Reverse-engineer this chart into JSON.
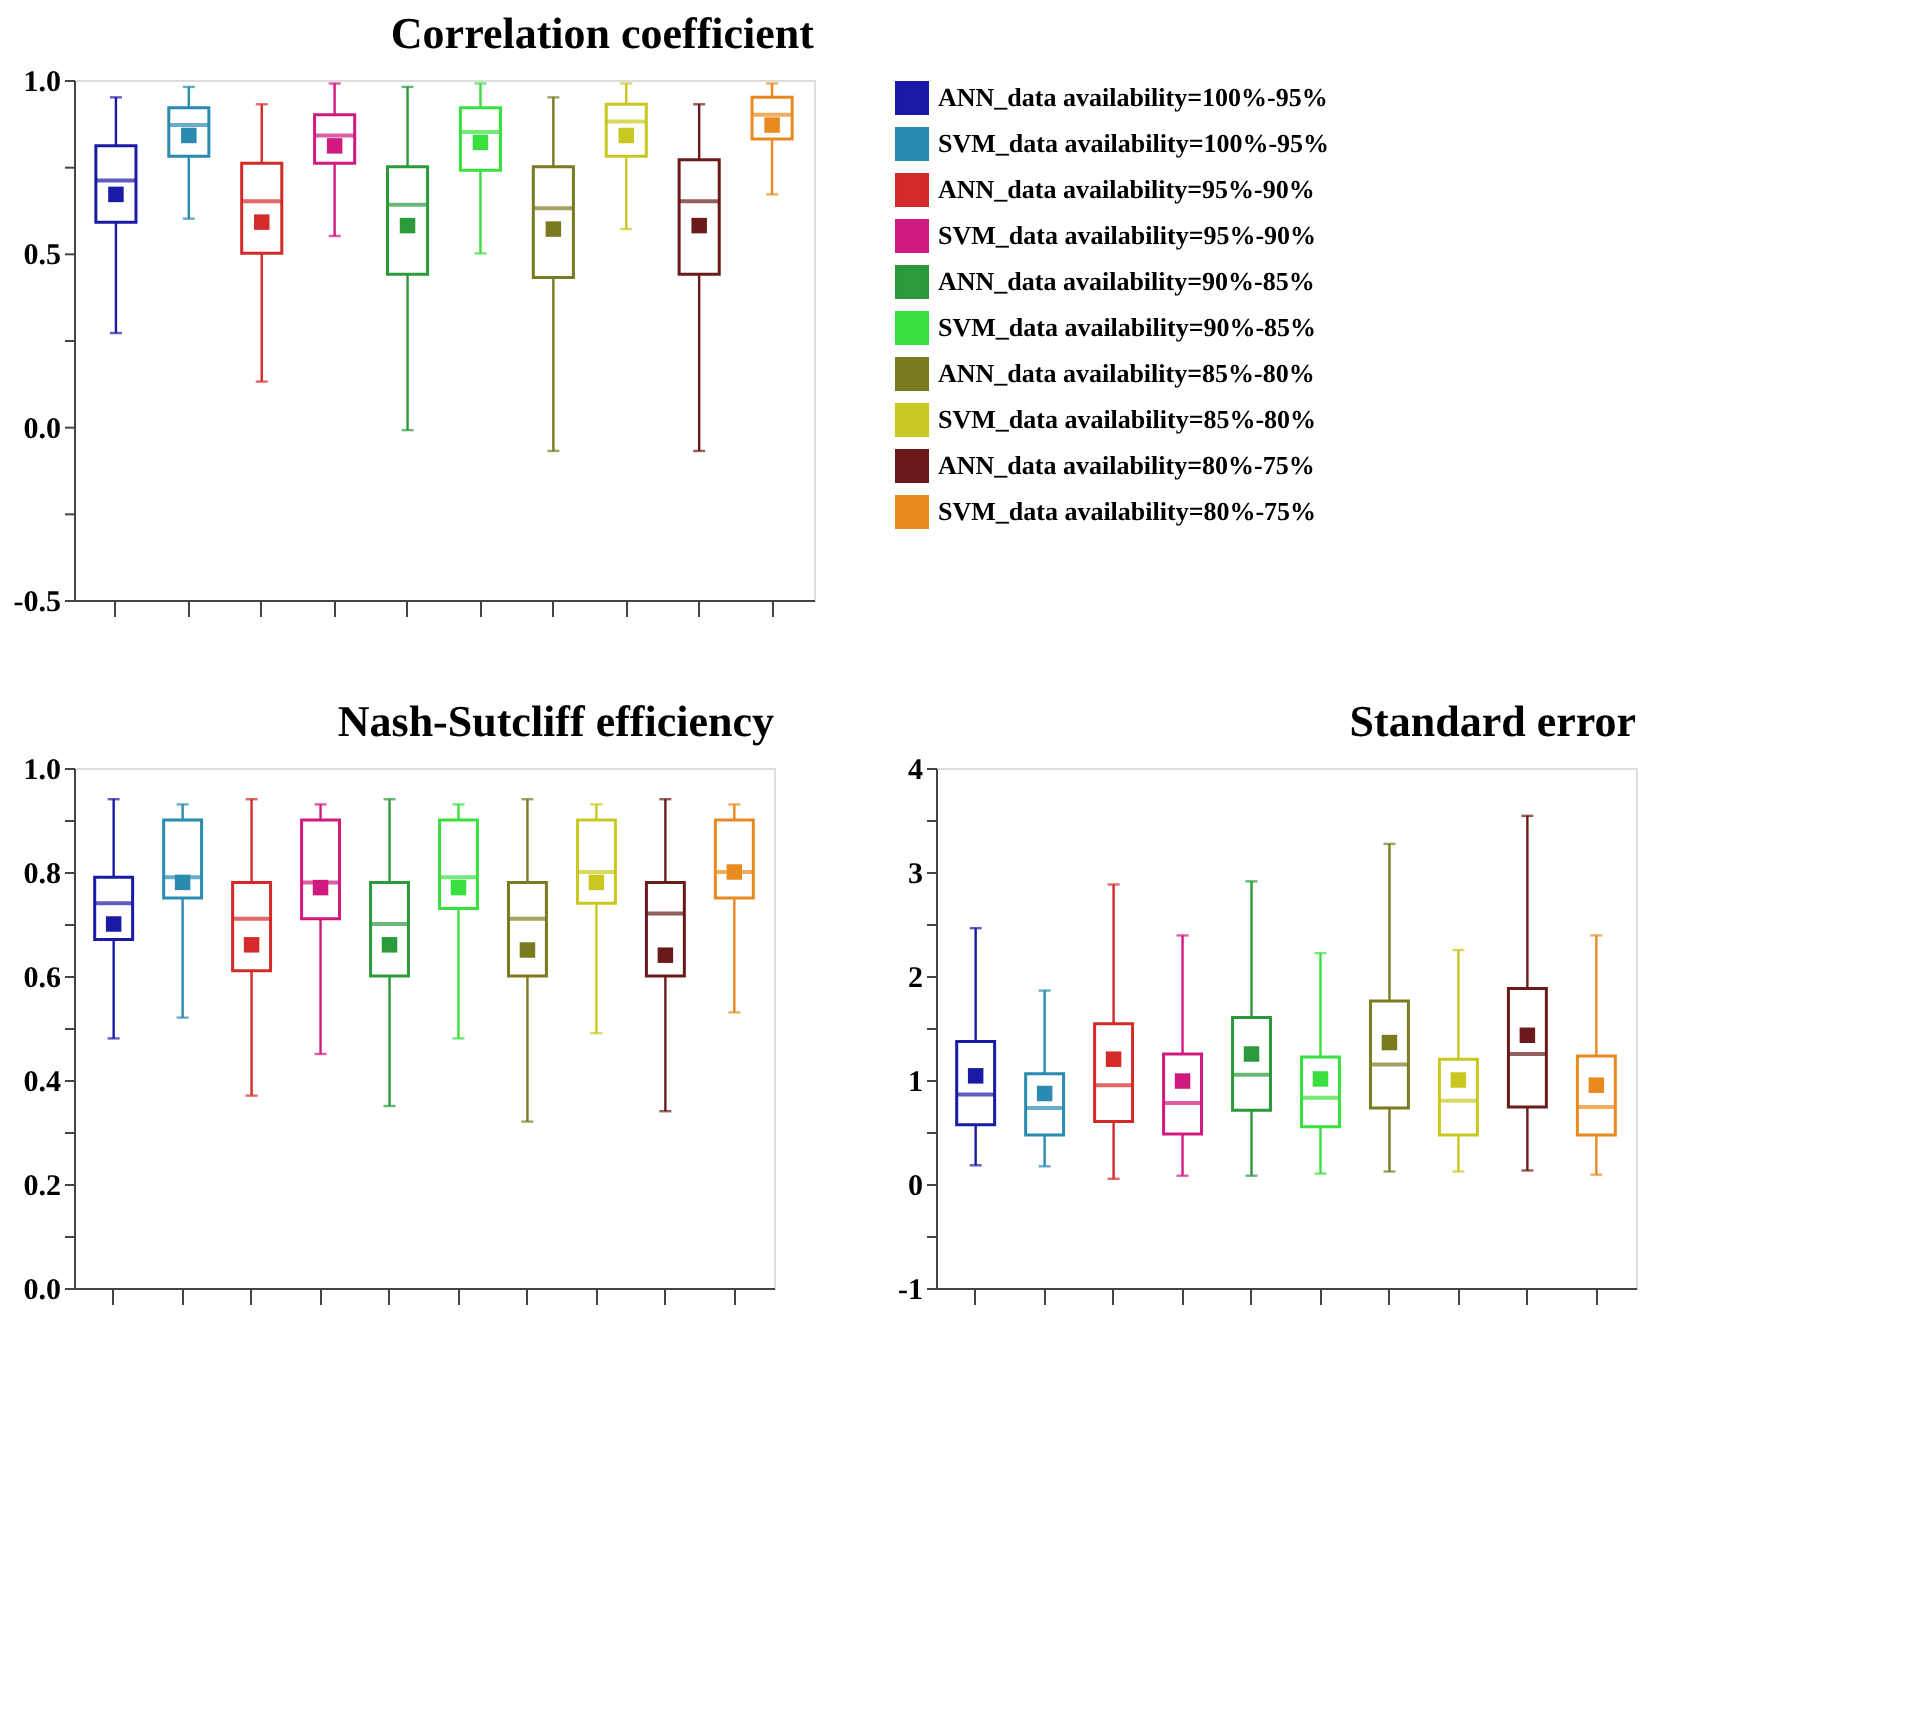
{
  "chart_data": [
    {
      "type": "box",
      "title": "Correlation coefficient",
      "legend": "right",
      "tick_labels": "y",
      "marker": "square",
      "categories": [
        null,
        null,
        null,
        null,
        null,
        null,
        null,
        null,
        null,
        null
      ],
      "ylim": [
        -0.5,
        1.0
      ],
      "yticks": [
        {
          "value": -0.5,
          "label": "-0.5"
        },
        {
          "value": -0.25,
          "label": null
        },
        {
          "value": 0,
          "label": "0.0"
        },
        {
          "value": 0.25,
          "label": null
        },
        {
          "value": 0.5,
          "label": "0.5"
        },
        {
          "value": 0.75,
          "label": null
        },
        {
          "value": 1.0,
          "label": "1.0"
        }
      ],
      "series": [
        {
          "name": "ANN_data availability=100%-95%",
          "color": "#1a1aa6",
          "boxes": [
            {
              "low": 0.27,
              "q1": 0.59,
              "median": 0.71,
              "q3": 0.81,
              "high": 0.95,
              "mean": 0.67
            },
            null,
            null,
            null,
            null,
            null,
            null,
            null,
            null,
            null
          ]
        },
        {
          "name": "SVM_data availability=100%-95%",
          "color": "#2a8ab0",
          "boxes": [
            null,
            {
              "low": 0.6,
              "q1": 0.78,
              "median": 0.87,
              "q3": 0.92,
              "high": 0.98,
              "mean": 0.84
            },
            null,
            null,
            null,
            null,
            null,
            null,
            null,
            null
          ]
        },
        {
          "name": "ANN_data availability=95%-90%",
          "color": "#d42a2a",
          "boxes": [
            null,
            null,
            {
              "low": 0.13,
              "q1": 0.5,
              "median": 0.65,
              "q3": 0.76,
              "high": 0.93,
              "mean": 0.59
            },
            null,
            null,
            null,
            null,
            null,
            null,
            null
          ]
        },
        {
          "name": "SVM_data availability=95%-90%",
          "color": "#d01a80",
          "boxes": [
            null,
            null,
            null,
            {
              "low": 0.55,
              "q1": 0.76,
              "median": 0.84,
              "q3": 0.9,
              "high": 0.99,
              "mean": 0.81
            },
            null,
            null,
            null,
            null,
            null,
            null
          ]
        },
        {
          "name": "ANN_data availability=90%-85%",
          "color": "#2a9a3a",
          "boxes": [
            null,
            null,
            null,
            null,
            {
              "low": -0.01,
              "q1": 0.44,
              "median": 0.64,
              "q3": 0.75,
              "high": 0.98,
              "mean": 0.58
            },
            null,
            null,
            null,
            null,
            null
          ]
        },
        {
          "name": "SVM_data availability=90%-85%",
          "color": "#3ae040",
          "boxes": [
            null,
            null,
            null,
            null,
            null,
            {
              "low": 0.5,
              "q1": 0.74,
              "median": 0.85,
              "q3": 0.92,
              "high": 0.99,
              "mean": 0.82
            },
            null,
            null,
            null,
            null
          ]
        },
        {
          "name": "ANN_data availability=85%-80%",
          "color": "#7a7a20",
          "boxes": [
            null,
            null,
            null,
            null,
            null,
            null,
            {
              "low": -0.07,
              "q1": 0.43,
              "median": 0.63,
              "q3": 0.75,
              "high": 0.95,
              "mean": 0.57
            },
            null,
            null,
            null
          ]
        },
        {
          "name": "SVM_data availability=85%-80%",
          "color": "#c8c820",
          "boxes": [
            null,
            null,
            null,
            null,
            null,
            null,
            null,
            {
              "low": 0.57,
              "q1": 0.78,
              "median": 0.88,
              "q3": 0.93,
              "high": 0.99,
              "mean": 0.84
            },
            null,
            null
          ]
        },
        {
          "name": "ANN_data availability=80%-75%",
          "color": "#6a1a1a",
          "boxes": [
            null,
            null,
            null,
            null,
            null,
            null,
            null,
            null,
            {
              "low": -0.07,
              "q1": 0.44,
              "median": 0.65,
              "q3": 0.77,
              "high": 0.93,
              "mean": 0.58
            },
            null
          ]
        },
        {
          "name": "SVM_data availability=80%-75%",
          "color": "#e88a20",
          "boxes": [
            null,
            null,
            null,
            null,
            null,
            null,
            null,
            null,
            null,
            {
              "low": 0.67,
              "q1": 0.83,
              "median": 0.9,
              "q3": 0.95,
              "high": 0.99,
              "mean": 0.87
            }
          ]
        }
      ]
    },
    {
      "type": "box",
      "title": "Nash-Sutcliff efficiency",
      "tick_labels": "y",
      "marker": "square",
      "categories": [
        null,
        null,
        null,
        null,
        null,
        null,
        null,
        null,
        null,
        null
      ],
      "ylim": [
        0,
        1.0
      ],
      "yticks": [
        {
          "value": 0,
          "label": "0.0"
        },
        {
          "value": 0.1,
          "label": null
        },
        {
          "value": 0.2,
          "label": "0.2"
        },
        {
          "value": 0.3,
          "label": null
        },
        {
          "value": 0.4,
          "label": "0.4"
        },
        {
          "value": 0.5,
          "label": null
        },
        {
          "value": 0.6,
          "label": "0.6"
        },
        {
          "value": 0.7,
          "label": null
        },
        {
          "value": 0.8,
          "label": "0.8"
        },
        {
          "value": 0.9,
          "label": null
        },
        {
          "value": 1.0,
          "label": "1.0"
        }
      ],
      "series": [
        {
          "color": "#1a1aa6",
          "boxes": [
            {
              "low": 0.48,
              "q1": 0.67,
              "median": 0.74,
              "q3": 0.79,
              "high": 0.94,
              "mean": 0.7
            },
            null,
            null,
            null,
            null,
            null,
            null,
            null,
            null,
            null
          ]
        },
        {
          "color": "#2a8ab0",
          "boxes": [
            null,
            {
              "low": 0.52,
              "q1": 0.75,
              "median": 0.79,
              "q3": 0.9,
              "high": 0.93,
              "mean": 0.78
            },
            null,
            null,
            null,
            null,
            null,
            null,
            null,
            null
          ]
        },
        {
          "color": "#d42a2a",
          "boxes": [
            null,
            null,
            {
              "low": 0.37,
              "q1": 0.61,
              "median": 0.71,
              "q3": 0.78,
              "high": 0.94,
              "mean": 0.66
            },
            null,
            null,
            null,
            null,
            null,
            null,
            null
          ]
        },
        {
          "color": "#d01a80",
          "boxes": [
            null,
            null,
            null,
            {
              "low": 0.45,
              "q1": 0.71,
              "median": 0.78,
              "q3": 0.9,
              "high": 0.93,
              "mean": 0.77
            },
            null,
            null,
            null,
            null,
            null,
            null
          ]
        },
        {
          "color": "#2a9a3a",
          "boxes": [
            null,
            null,
            null,
            null,
            {
              "low": 0.35,
              "q1": 0.6,
              "median": 0.7,
              "q3": 0.78,
              "high": 0.94,
              "mean": 0.66
            },
            null,
            null,
            null,
            null,
            null
          ]
        },
        {
          "color": "#3ae040",
          "boxes": [
            null,
            null,
            null,
            null,
            null,
            {
              "low": 0.48,
              "q1": 0.73,
              "median": 0.79,
              "q3": 0.9,
              "high": 0.93,
              "mean": 0.77
            },
            null,
            null,
            null,
            null
          ]
        },
        {
          "color": "#7a7a20",
          "boxes": [
            null,
            null,
            null,
            null,
            null,
            null,
            {
              "low": 0.32,
              "q1": 0.6,
              "median": 0.71,
              "q3": 0.78,
              "high": 0.94,
              "mean": 0.65
            },
            null,
            null,
            null
          ]
        },
        {
          "color": "#c8c820",
          "boxes": [
            null,
            null,
            null,
            null,
            null,
            null,
            null,
            {
              "low": 0.49,
              "q1": 0.74,
              "median": 0.8,
              "q3": 0.9,
              "high": 0.93,
              "mean": 0.78
            },
            null,
            null
          ]
        },
        {
          "color": "#6a1a1a",
          "boxes": [
            null,
            null,
            null,
            null,
            null,
            null,
            null,
            null,
            {
              "low": 0.34,
              "q1": 0.6,
              "median": 0.72,
              "q3": 0.78,
              "high": 0.94,
              "mean": 0.64
            },
            null
          ]
        },
        {
          "color": "#e88a20",
          "boxes": [
            null,
            null,
            null,
            null,
            null,
            null,
            null,
            null,
            null,
            {
              "low": 0.53,
              "q1": 0.75,
              "median": 0.8,
              "q3": 0.9,
              "high": 0.93,
              "mean": 0.8
            }
          ]
        }
      ]
    },
    {
      "type": "box",
      "title": "Standard error",
      "tick_labels": "y",
      "marker": "square",
      "categories": [
        null,
        null,
        null,
        null,
        null,
        null,
        null,
        null,
        null,
        null
      ],
      "ylim": [
        -1,
        4
      ],
      "yticks": [
        {
          "value": -1,
          "label": "-1"
        },
        {
          "value": -0.5,
          "label": null
        },
        {
          "value": 0,
          "label": "0"
        },
        {
          "value": 0.5,
          "label": null
        },
        {
          "value": 1,
          "label": "1"
        },
        {
          "value": 1.5,
          "label": null
        },
        {
          "value": 2,
          "label": "2"
        },
        {
          "value": 2.5,
          "label": null
        },
        {
          "value": 3,
          "label": "3"
        },
        {
          "value": 3.5,
          "label": null
        },
        {
          "value": 4,
          "label": "4"
        }
      ],
      "series": [
        {
          "color": "#1a1aa6",
          "boxes": [
            {
              "low": 0.18,
              "q1": 0.57,
              "median": 0.86,
              "q3": 1.37,
              "high": 2.46,
              "mean": 1.04
            },
            null,
            null,
            null,
            null,
            null,
            null,
            null,
            null,
            null
          ]
        },
        {
          "color": "#2a8ab0",
          "boxes": [
            null,
            {
              "low": 0.17,
              "q1": 0.47,
              "median": 0.73,
              "q3": 1.06,
              "high": 1.86,
              "mean": 0.87
            },
            null,
            null,
            null,
            null,
            null,
            null,
            null,
            null
          ]
        },
        {
          "color": "#d42a2a",
          "boxes": [
            null,
            null,
            {
              "low": 0.05,
              "q1": 0.6,
              "median": 0.95,
              "q3": 1.54,
              "high": 2.88,
              "mean": 1.2
            },
            null,
            null,
            null,
            null,
            null,
            null,
            null
          ]
        },
        {
          "color": "#d01a80",
          "boxes": [
            null,
            null,
            null,
            {
              "low": 0.08,
              "q1": 0.48,
              "median": 0.78,
              "q3": 1.25,
              "high": 2.39,
              "mean": 0.99
            },
            null,
            null,
            null,
            null,
            null,
            null
          ]
        },
        {
          "color": "#2a9a3a",
          "boxes": [
            null,
            null,
            null,
            null,
            {
              "low": 0.08,
              "q1": 0.71,
              "median": 1.05,
              "q3": 1.6,
              "high": 2.91,
              "mean": 1.25
            },
            null,
            null,
            null,
            null,
            null
          ]
        },
        {
          "color": "#3ae040",
          "boxes": [
            null,
            null,
            null,
            null,
            null,
            {
              "low": 0.1,
              "q1": 0.55,
              "median": 0.83,
              "q3": 1.22,
              "high": 2.22,
              "mean": 1.01
            },
            null,
            null,
            null,
            null
          ]
        },
        {
          "color": "#7a7a20",
          "boxes": [
            null,
            null,
            null,
            null,
            null,
            null,
            {
              "low": 0.12,
              "q1": 0.73,
              "median": 1.15,
              "q3": 1.76,
              "high": 3.27,
              "mean": 1.36
            },
            null,
            null,
            null
          ]
        },
        {
          "color": "#c8c820",
          "boxes": [
            null,
            null,
            null,
            null,
            null,
            null,
            null,
            {
              "low": 0.12,
              "q1": 0.47,
              "median": 0.8,
              "q3": 1.2,
              "high": 2.25,
              "mean": 1.0
            },
            null,
            null
          ]
        },
        {
          "color": "#6a1a1a",
          "boxes": [
            null,
            null,
            null,
            null,
            null,
            null,
            null,
            null,
            {
              "low": 0.13,
              "q1": 0.74,
              "median": 1.25,
              "q3": 1.88,
              "high": 3.54,
              "mean": 1.43
            },
            null
          ]
        },
        {
          "color": "#e88a20",
          "boxes": [
            null,
            null,
            null,
            null,
            null,
            null,
            null,
            null,
            null,
            {
              "low": 0.09,
              "q1": 0.47,
              "median": 0.74,
              "q3": 1.23,
              "high": 2.39,
              "mean": 0.95
            }
          ]
        }
      ]
    }
  ]
}
